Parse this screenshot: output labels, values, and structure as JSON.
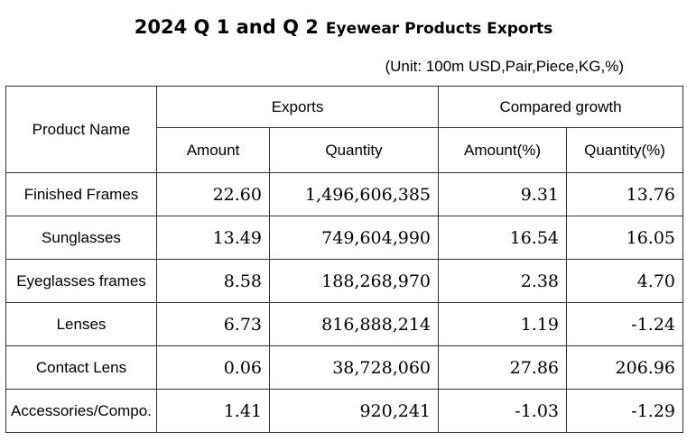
{
  "title": {
    "main": "2024 Q 1 and Q 2",
    "sub": "Eyewear Products Exports"
  },
  "unit": "(Unit: 100m USD,Pair,Piece,KG,%)",
  "table": {
    "headers": {
      "product_name": "Product Name",
      "exports": "Exports",
      "compared_growth": "Compared growth",
      "amount": "Amount",
      "quantity": "Quantity",
      "amount_pct": "Amount(%)",
      "quantity_pct": "Quantity(%)"
    },
    "rows": [
      {
        "name": "Finished Frames",
        "amount": "22.60",
        "quantity": "1,496,606,385",
        "amount_pct": "9.31",
        "quantity_pct": "13.76"
      },
      {
        "name": "Sunglasses",
        "amount": "13.49",
        "quantity": "749,604,990",
        "amount_pct": "16.54",
        "quantity_pct": "16.05"
      },
      {
        "name": "Eyeglasses frames",
        "amount": "8.58",
        "quantity": "188,268,970",
        "amount_pct": "2.38",
        "quantity_pct": "4.70"
      },
      {
        "name": "Lenses",
        "amount": "6.73",
        "quantity": "816,888,214",
        "amount_pct": "1.19",
        "quantity_pct": "-1.24"
      },
      {
        "name": "Contact Lens",
        "amount": "0.06",
        "quantity": "38,728,060",
        "amount_pct": "27.86",
        "quantity_pct": "206.96"
      },
      {
        "name": "Accessories/Compo.",
        "amount": "1.41",
        "quantity": "920,241",
        "amount_pct": "-1.03",
        "quantity_pct": "-1.29"
      }
    ]
  }
}
